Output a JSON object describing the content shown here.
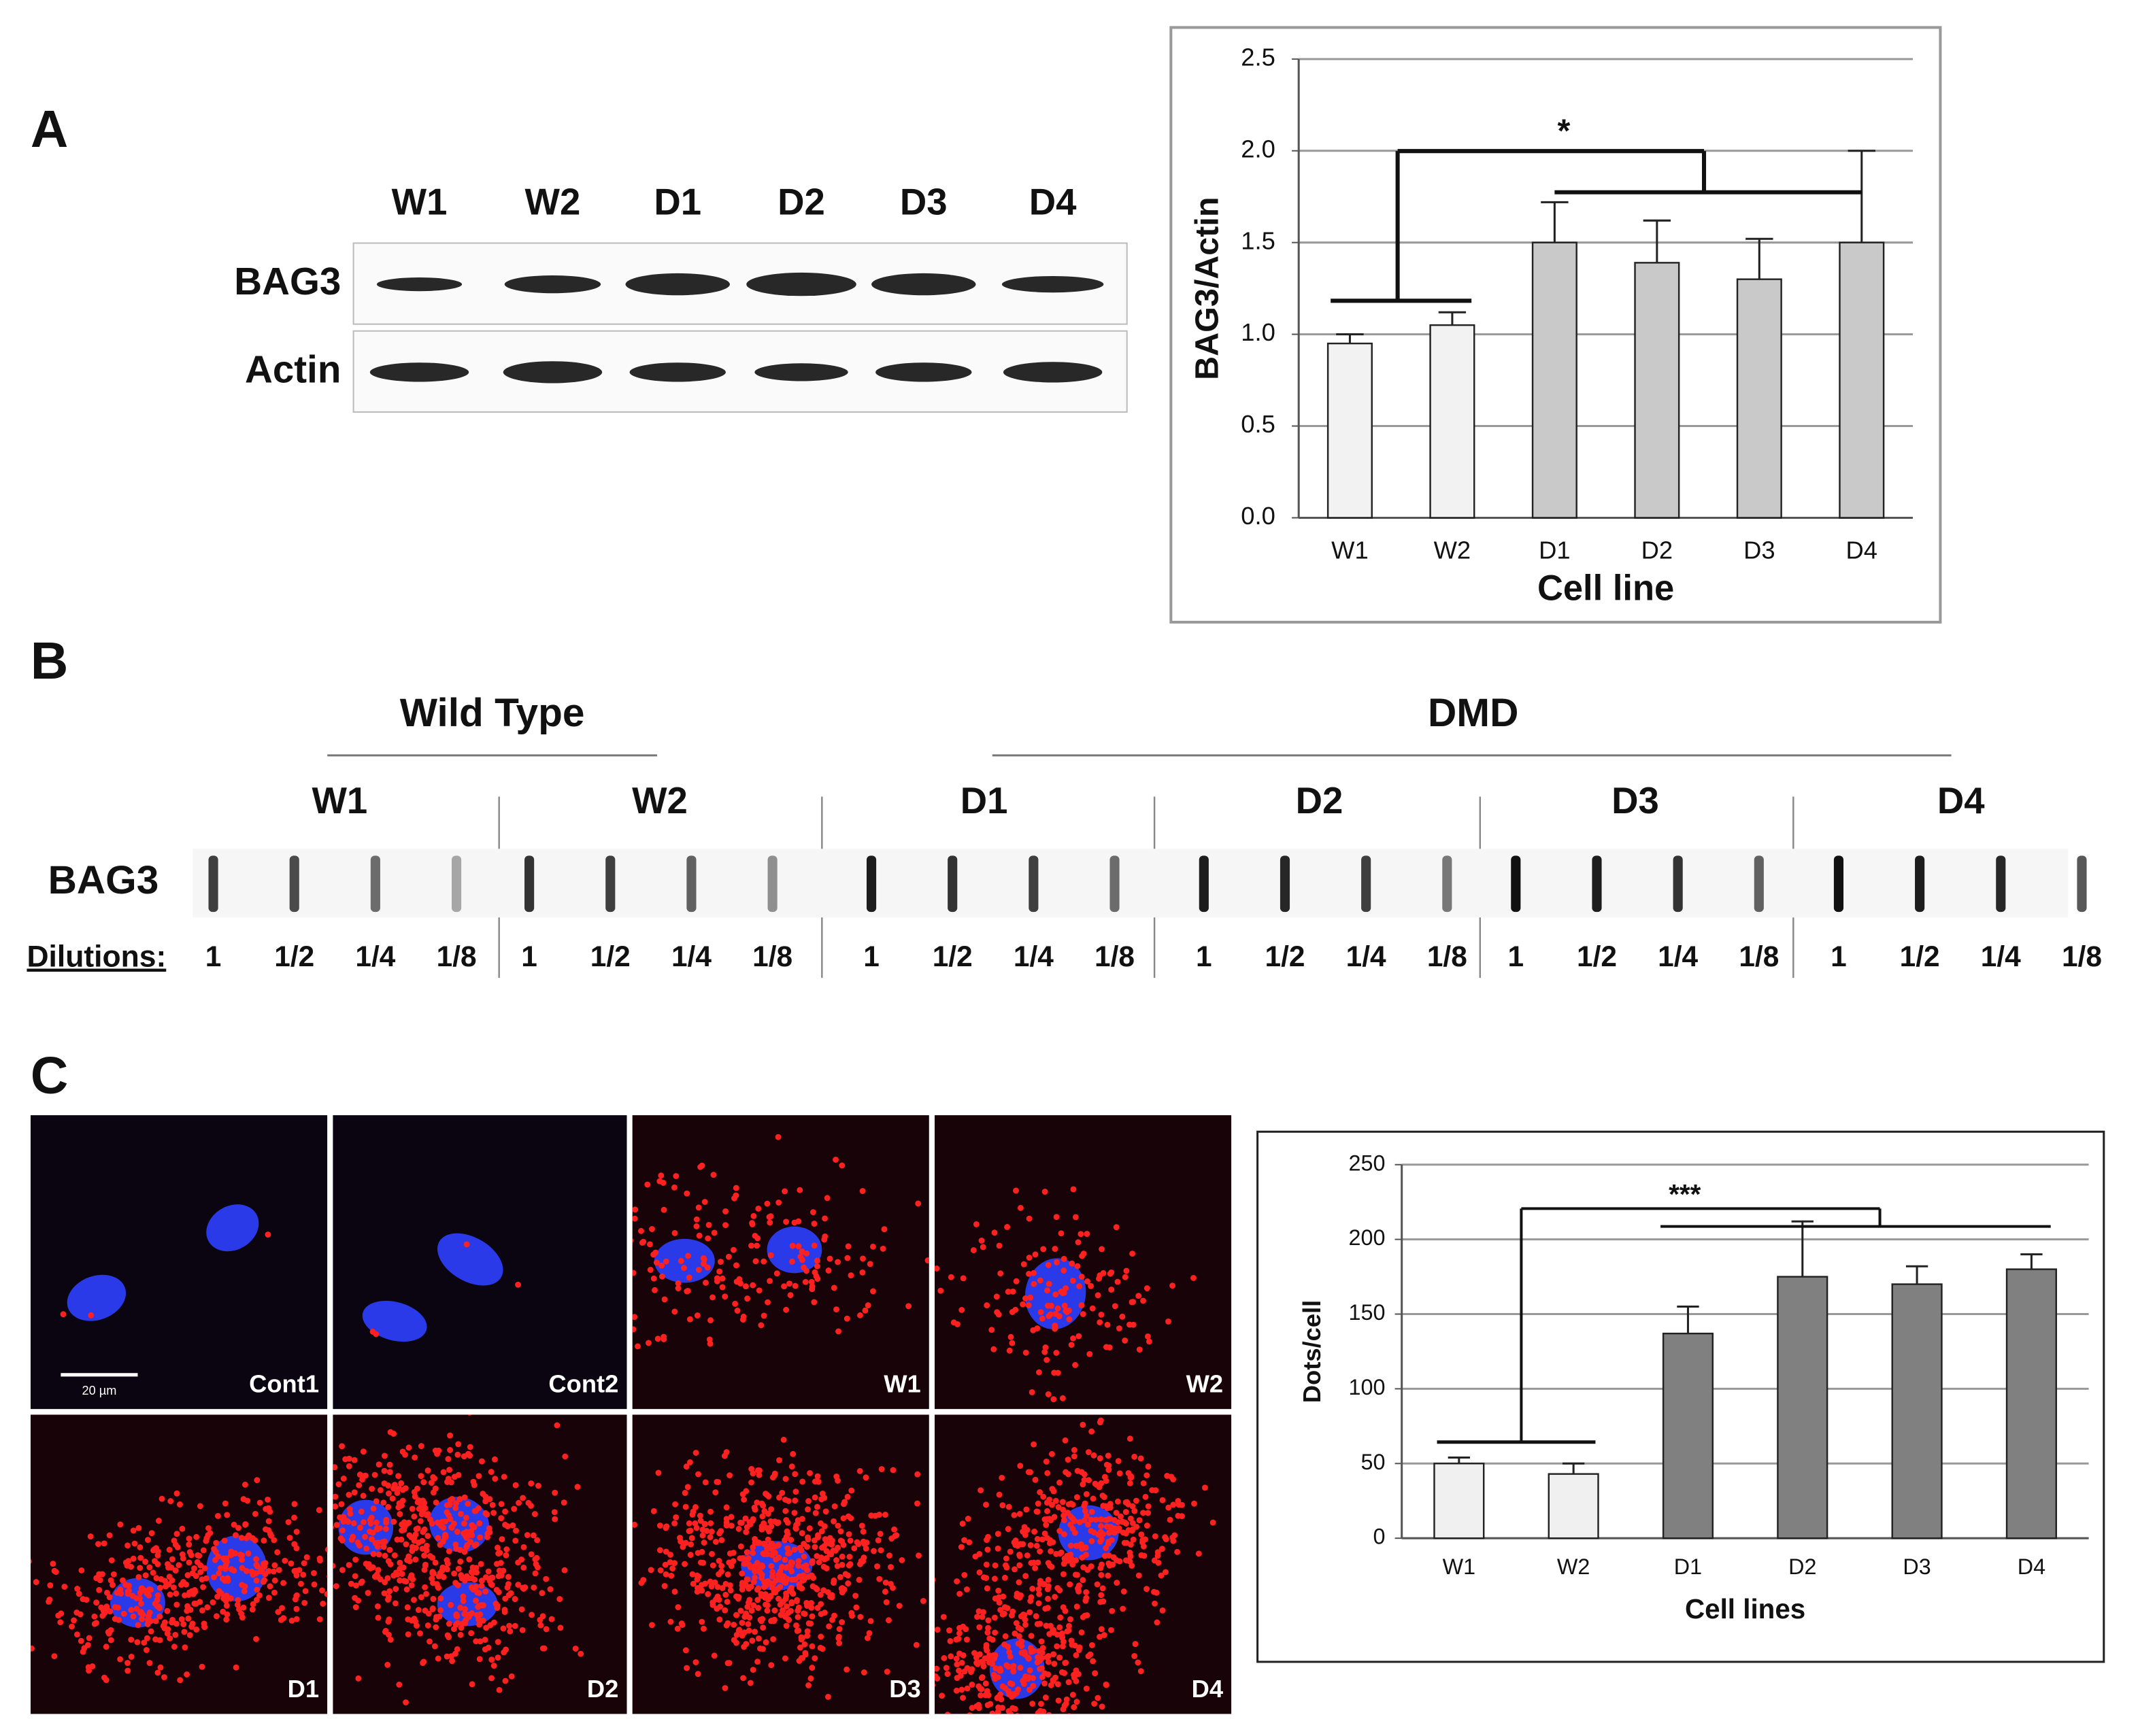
{
  "panel_labels": [
    "A",
    "B",
    "C"
  ],
  "western_blot": {
    "lanes": [
      "W1",
      "W2",
      "D1",
      "D2",
      "D3",
      "D4"
    ],
    "rows": [
      "BAG3",
      "Actin"
    ]
  },
  "chart_a": {
    "type": "bar",
    "y_label": "BAG3/Actin",
    "x_label": "Cell line",
    "categories": [
      "W1",
      "W2",
      "D1",
      "D2",
      "D3",
      "D4"
    ],
    "values": [
      0.95,
      1.05,
      1.5,
      1.39,
      1.3,
      1.5
    ],
    "errors": [
      0.05,
      0.07,
      0.22,
      0.23,
      0.22,
      0.5
    ],
    "colors": [
      "#f2f2f2",
      "#f2f2f2",
      "#c9c9c9",
      "#c9c9c9",
      "#c9c9c9",
      "#c9c9c9"
    ],
    "ylim": [
      0,
      2.5
    ],
    "yticks": [
      {
        "value": 0,
        "label": "0.0"
      },
      {
        "value": 0.5,
        "label": "0.5"
      },
      {
        "value": 1,
        "label": "1.0"
      },
      {
        "value": 1.5,
        "label": "1.5"
      },
      {
        "value": 2,
        "label": "2.0"
      },
      {
        "value": 2.5,
        "label": "2.5"
      }
    ],
    "grid": true,
    "annotation": "*"
  },
  "slot_blot": {
    "groups": [
      {
        "name": "Wild Type",
        "lanes": [
          "W1",
          "W2"
        ]
      },
      {
        "name": "DMD",
        "lanes": [
          "D1",
          "D2",
          "D3",
          "D4"
        ]
      }
    ],
    "row_label": "BAG3",
    "dilutions_label": "Dilutions:",
    "dilutions": [
      "1",
      "1/2",
      "1/4",
      "1/8"
    ]
  },
  "micrographs": {
    "labels": [
      "Cont1",
      "Cont2",
      "W1",
      "W2",
      "D1",
      "D2",
      "D3",
      "D4"
    ],
    "scale_bar": "20 µm"
  },
  "chart_c": {
    "type": "bar",
    "y_label": "Dots/cell",
    "x_label": "Cell lines",
    "categories": [
      "W1",
      "W2",
      "D1",
      "D2",
      "D3",
      "D4"
    ],
    "values": [
      50,
      43,
      137,
      175,
      170,
      180
    ],
    "errors": [
      4,
      7,
      18,
      37,
      12,
      10
    ],
    "colors": [
      "#f0f0f0",
      "#f0f0f0",
      "#808080",
      "#808080",
      "#808080",
      "#808080"
    ],
    "ylim": [
      0,
      250
    ],
    "yticks": [
      0,
      50,
      100,
      150,
      200,
      250
    ],
    "grid": true,
    "annotation": "***"
  }
}
